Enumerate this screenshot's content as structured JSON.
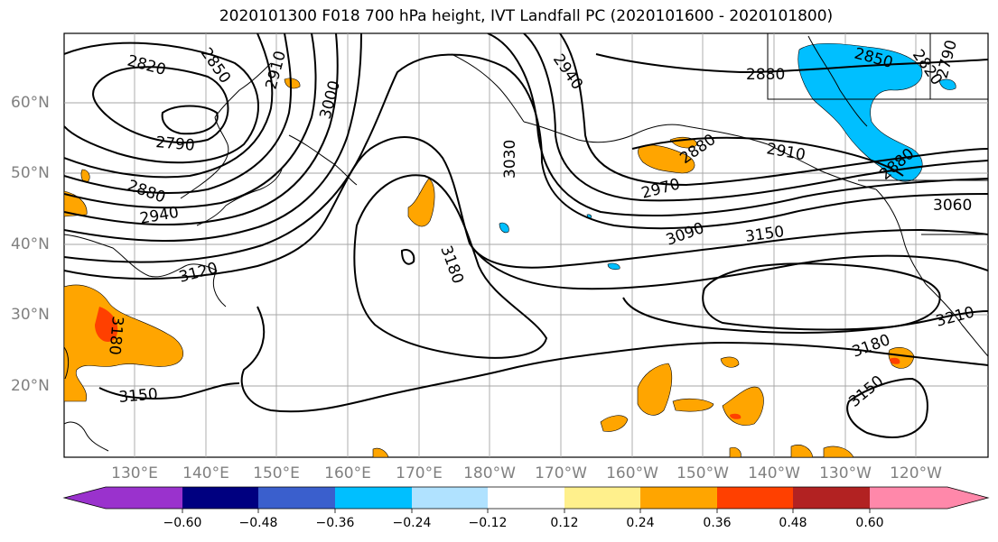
{
  "title": "2020101300 F018 700 hPa height, IVT Landfall PC (2020101600 - 2020101800)",
  "lat_labels": [
    "60°N",
    "50°N",
    "40°N",
    "30°N",
    "20°N"
  ],
  "lon_labels": [
    "130°E",
    "140°E",
    "150°E",
    "160°E",
    "170°E",
    "180°W",
    "170°W",
    "160°W",
    "150°W",
    "140°W",
    "130°W",
    "120°W"
  ],
  "contour_labels": [
    "2820",
    "2850",
    "2910",
    "3000",
    "2940",
    "2880",
    "2850",
    "2820",
    "2790",
    "2790",
    "2880",
    "2940",
    "3120",
    "3180",
    "3150",
    "3030",
    "3180",
    "2880",
    "2910",
    "2970",
    "3090",
    "3150",
    "2880",
    "3060",
    "3180",
    "3150",
    "3210"
  ],
  "colorbar": {
    "colors": [
      "#9a32cd",
      "#000080",
      "#3a5fcd",
      "#00bfff",
      "#b0e2ff",
      "#ffffff",
      "#fff08c",
      "#ffa500",
      "#ff4000",
      "#b22222",
      "#ff88aa"
    ],
    "ticks": [
      "−0.60",
      "−0.48",
      "−0.36",
      "−0.24",
      "−0.12",
      "0.12",
      "0.24",
      "0.36",
      "0.48",
      "0.60"
    ]
  }
}
